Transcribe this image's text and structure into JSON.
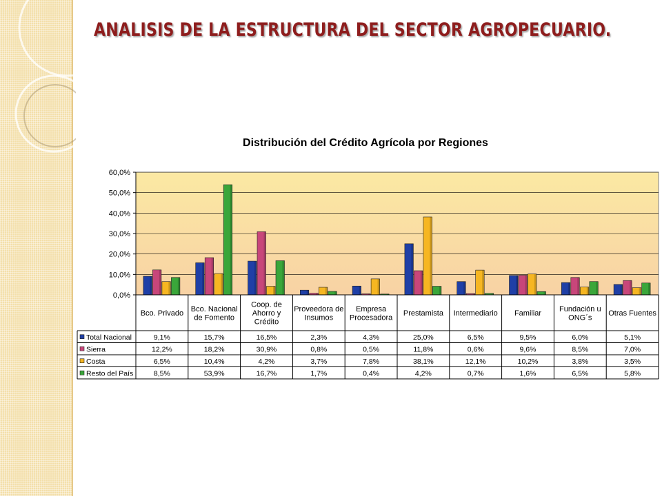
{
  "slide": {
    "title": "ANALISIS  DE LA ESTRUCTURA DEL SECTOR AGROPECUARIO."
  },
  "chart_data": {
    "type": "bar",
    "title": "Distribución del Crédito Agrícola por Regiones",
    "ylim": [
      0,
      60
    ],
    "yticks": [
      "0,0%",
      "10,0%",
      "20,0%",
      "30,0%",
      "40,0%",
      "50,0%",
      "60,0%"
    ],
    "grid": true,
    "legend": "left of data table",
    "categories": [
      [
        "Bco. Privado"
      ],
      [
        "Bco. Nacional",
        "de Fomento"
      ],
      [
        "Coop. de",
        "Ahorro y",
        "Crédito"
      ],
      [
        "Proveedora de",
        "Insumos"
      ],
      [
        "Empresa",
        "Procesadora"
      ],
      [
        "Prestamista"
      ],
      [
        "Intermediario"
      ],
      [
        "Familiar"
      ],
      [
        "Fundación u",
        "ONG´s"
      ],
      [
        "Otras Fuentes"
      ]
    ],
    "series": [
      {
        "name": "Total Nacional",
        "color": "#1f3fa6",
        "values": [
          9.1,
          15.7,
          16.5,
          2.3,
          4.3,
          25.0,
          6.5,
          9.5,
          6.0,
          5.1
        ],
        "labels": [
          "9,1%",
          "15,7%",
          "16,5%",
          "2,3%",
          "4,3%",
          "25,0%",
          "6,5%",
          "9,5%",
          "6,0%",
          "5,1%"
        ]
      },
      {
        "name": "Sierra",
        "color": "#c8467a",
        "values": [
          12.2,
          18.2,
          30.9,
          0.8,
          0.5,
          11.8,
          0.6,
          9.6,
          8.5,
          7.0
        ],
        "labels": [
          "12,2%",
          "18,2%",
          "30,9%",
          "0,8%",
          "0,5%",
          "11,8%",
          "0,6%",
          "9,6%",
          "8,5%",
          "7,0%"
        ]
      },
      {
        "name": "Costa",
        "color": "#f6b622",
        "values": [
          6.5,
          10.4,
          4.2,
          3.7,
          7.8,
          38.1,
          12.1,
          10.2,
          3.8,
          3.5
        ],
        "labels": [
          "6,5%",
          "10,4%",
          "4,2%",
          "3,7%",
          "7,8%",
          "38,1%",
          "12,1%",
          "10,2%",
          "3,8%",
          "3,5%"
        ]
      },
      {
        "name": "Resto del País",
        "color": "#3aa63a",
        "values": [
          8.5,
          53.9,
          16.7,
          1.7,
          0.4,
          4.2,
          0.7,
          1.6,
          6.5,
          5.8
        ],
        "labels": [
          "8,5%",
          "53,9%",
          "16,7%",
          "1,7%",
          "0,4%",
          "4,2%",
          "0,7%",
          "1,6%",
          "6,5%",
          "5,8%"
        ]
      }
    ]
  }
}
